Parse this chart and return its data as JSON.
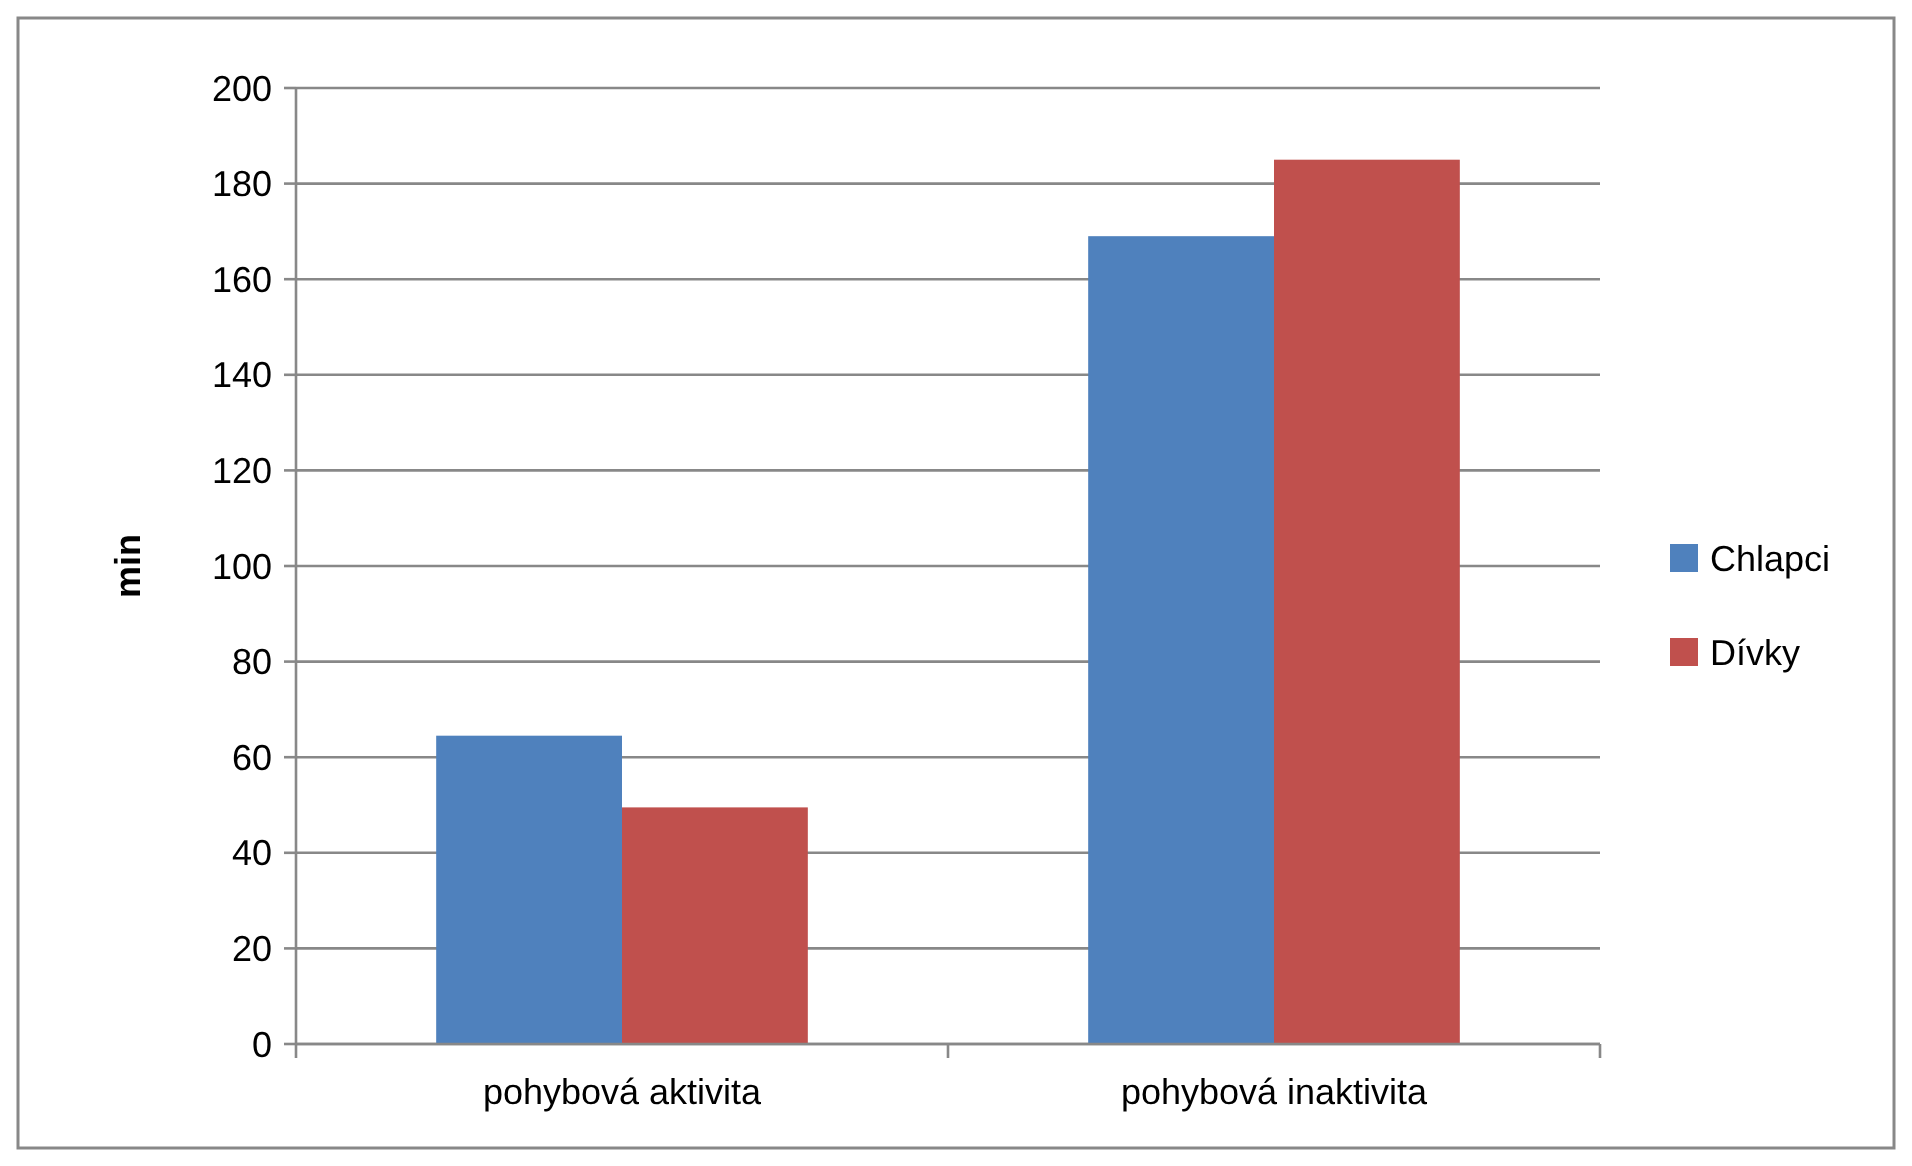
{
  "chart_data": {
    "type": "bar",
    "ylabel": "min",
    "categories": [
      "pohybová aktivita",
      "pohybová inaktivita"
    ],
    "series": [
      {
        "name": "Chlapci",
        "color": "#4f81bd",
        "values": [
          64.5,
          169
        ]
      },
      {
        "name": "Dívky",
        "color": "#c0504d",
        "values": [
          49.5,
          185
        ]
      }
    ],
    "ylim": [
      0,
      200
    ],
    "yticks": [
      0,
      20,
      40,
      60,
      80,
      100,
      120,
      140,
      160,
      180,
      200
    ],
    "grid": "y",
    "legend": "right"
  }
}
